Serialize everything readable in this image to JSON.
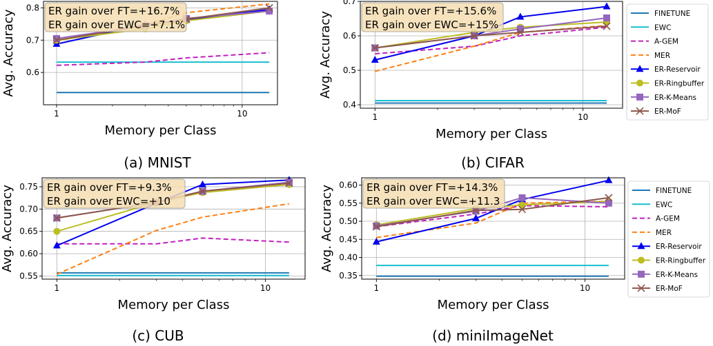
{
  "chart_data": [
    {
      "type": "line",
      "caption": "(a) MNIST",
      "xlabel": "Memory per Class",
      "ylabel": "Avg. Accuracy",
      "x_scale": "log",
      "xlim": [
        0.85,
        15.5
      ],
      "ylim": [
        0.5,
        0.82
      ],
      "x_ticks": [
        1,
        10
      ],
      "x_tick_labels": [
        "1",
        "10"
      ],
      "y_ticks": [
        0.6,
        0.7,
        0.8
      ],
      "y_tick_labels": [
        "0.6",
        "0.7",
        "0.8"
      ],
      "grid": true,
      "annotation": [
        "ER gain over FT=+16.7%",
        "ER gain over EWC=+7.1%"
      ],
      "legend": null,
      "series": [
        {
          "name": "FINETUNE",
          "x": [
            1,
            14
          ],
          "values": [
            0.538,
            0.538
          ]
        },
        {
          "name": "EWC",
          "x": [
            1,
            14
          ],
          "values": [
            0.632,
            0.632
          ]
        },
        {
          "name": "A-GEM",
          "x": [
            1,
            3,
            5,
            14
          ],
          "values": [
            0.622,
            0.632,
            0.645,
            0.661
          ]
        },
        {
          "name": "MER",
          "x": [
            1,
            3,
            5,
            14
          ],
          "values": [
            0.698,
            0.748,
            0.785,
            0.812
          ]
        },
        {
          "name": "ER-Reservoir",
          "x": [
            1,
            3,
            5,
            14
          ],
          "values": [
            0.688,
            0.748,
            0.762,
            0.795
          ]
        },
        {
          "name": "ER-Ringbuffer",
          "x": [
            1,
            3,
            5,
            14
          ],
          "values": [
            0.7,
            0.735,
            0.76,
            0.79
          ]
        },
        {
          "name": "ER-K-Means",
          "x": [
            1,
            3,
            5,
            14
          ],
          "values": [
            0.705,
            0.745,
            0.767,
            0.79
          ]
        },
        {
          "name": "ER-MoF",
          "x": [
            1,
            3,
            5,
            14
          ],
          "values": [
            0.7,
            0.745,
            0.765,
            0.8
          ]
        }
      ]
    },
    {
      "type": "line",
      "caption": "(b) CIFAR",
      "xlabel": "Memory per Class",
      "ylabel": "Avg. Accuracy",
      "x_scale": "log",
      "xlim": [
        0.85,
        15.5
      ],
      "ylim": [
        0.39,
        0.7
      ],
      "x_ticks": [
        1,
        10
      ],
      "x_tick_labels": [
        "1",
        "10"
      ],
      "y_ticks": [
        0.4,
        0.5,
        0.6,
        0.7
      ],
      "y_tick_labels": [
        "0.4",
        "0.5",
        "0.6",
        "0.7"
      ],
      "grid": true,
      "annotation": [
        "ER gain over FT=+15.6%",
        "ER gain over EWC=+15%"
      ],
      "legend": "right",
      "series": [
        {
          "name": "FINETUNE",
          "x": [
            1,
            13
          ],
          "values": [
            0.405,
            0.405
          ]
        },
        {
          "name": "EWC",
          "x": [
            1,
            13
          ],
          "values": [
            0.412,
            0.412
          ]
        },
        {
          "name": "A-GEM",
          "x": [
            1,
            3,
            5,
            13
          ],
          "values": [
            0.548,
            0.57,
            0.6,
            0.625
          ]
        },
        {
          "name": "MER",
          "x": [
            1,
            3,
            5,
            13
          ],
          "values": [
            0.497,
            0.57,
            0.61,
            0.63
          ]
        },
        {
          "name": "ER-Reservoir",
          "x": [
            1,
            3,
            5,
            13
          ],
          "values": [
            0.53,
            0.6,
            0.655,
            0.685
          ]
        },
        {
          "name": "ER-Ringbuffer",
          "x": [
            1,
            3,
            5,
            13
          ],
          "values": [
            0.565,
            0.61,
            0.625,
            0.64
          ]
        },
        {
          "name": "ER-K-Means",
          "x": [
            1,
            3,
            5,
            13
          ],
          "values": [
            0.565,
            0.6,
            0.62,
            0.652
          ]
        },
        {
          "name": "ER-MoF",
          "x": [
            1,
            3,
            5,
            13
          ],
          "values": [
            0.565,
            0.6,
            0.61,
            0.628
          ]
        }
      ]
    },
    {
      "type": "line",
      "caption": "(c) CUB",
      "xlabel": "Memory per Class",
      "ylabel": "Avg. Accuracy",
      "x_scale": "log",
      "xlim": [
        0.85,
        15.5
      ],
      "ylim": [
        0.543,
        0.77
      ],
      "x_ticks": [
        1,
        10
      ],
      "x_tick_labels": [
        "1",
        "10"
      ],
      "y_ticks": [
        0.55,
        0.6,
        0.65,
        0.7,
        0.75
      ],
      "y_tick_labels": [
        "0.55",
        "0.60",
        "0.65",
        "0.70",
        "0.75"
      ],
      "grid": true,
      "annotation": [
        "ER gain over FT=+9.3%",
        "ER gain over EWC=+10"
      ],
      "legend": null,
      "series": [
        {
          "name": "FINETUNE",
          "x": [
            1,
            13
          ],
          "values": [
            0.557,
            0.557
          ]
        },
        {
          "name": "EWC",
          "x": [
            1,
            13
          ],
          "values": [
            0.551,
            0.551
          ]
        },
        {
          "name": "A-GEM",
          "x": [
            1,
            3,
            5,
            13
          ],
          "values": [
            0.622,
            0.622,
            0.635,
            0.626
          ]
        },
        {
          "name": "MER",
          "x": [
            1,
            3,
            5,
            13
          ],
          "values": [
            0.554,
            0.652,
            0.682,
            0.712
          ]
        },
        {
          "name": "ER-Reservoir",
          "x": [
            1,
            3,
            5,
            13
          ],
          "values": [
            0.618,
            0.713,
            0.755,
            0.765
          ]
        },
        {
          "name": "ER-Ringbuffer",
          "x": [
            1,
            3,
            5,
            13
          ],
          "values": [
            0.65,
            0.715,
            0.737,
            0.755
          ]
        },
        {
          "name": "ER-K-Means",
          "x": [
            1,
            3,
            5,
            13
          ],
          "values": [
            0.68,
            0.715,
            0.74,
            0.76
          ]
        },
        {
          "name": "ER-MoF",
          "x": [
            1,
            3,
            5,
            13
          ],
          "values": [
            0.68,
            0.715,
            0.74,
            0.758
          ]
        }
      ]
    },
    {
      "type": "line",
      "caption": "(d) miniImageNet",
      "xlabel": "Memory per Class",
      "ylabel": "Avg. Accuracy",
      "x_scale": "log",
      "xlim": [
        0.85,
        15.5
      ],
      "ylim": [
        0.34,
        0.62
      ],
      "x_ticks": [
        1,
        10
      ],
      "x_tick_labels": [
        "1",
        "10"
      ],
      "y_ticks": [
        0.35,
        0.4,
        0.45,
        0.5,
        0.55,
        0.6
      ],
      "y_tick_labels": [
        "0.35",
        "0.40",
        "0.45",
        "0.50",
        "0.55",
        "0.60"
      ],
      "grid": true,
      "annotation": [
        "ER gain over FT=+14.3%",
        "ER gain over EWC=+11.3"
      ],
      "legend": "right",
      "series": [
        {
          "name": "FINETUNE",
          "x": [
            1,
            13
          ],
          "values": [
            0.348,
            0.348
          ]
        },
        {
          "name": "EWC",
          "x": [
            1,
            13
          ],
          "values": [
            0.378,
            0.378
          ]
        },
        {
          "name": "A-GEM",
          "x": [
            1,
            3,
            5,
            13
          ],
          "values": [
            0.485,
            0.52,
            0.543,
            0.54
          ]
        },
        {
          "name": "MER",
          "x": [
            1,
            3,
            5,
            13
          ],
          "values": [
            0.455,
            0.495,
            0.55,
            0.555
          ]
        },
        {
          "name": "ER-Reservoir",
          "x": [
            1,
            3,
            5,
            13
          ],
          "values": [
            0.443,
            0.508,
            0.56,
            0.613
          ]
        },
        {
          "name": "ER-Ringbuffer",
          "x": [
            1,
            3,
            5,
            13
          ],
          "values": [
            0.49,
            0.535,
            0.545,
            0.555
          ]
        },
        {
          "name": "ER-K-Means",
          "x": [
            1,
            3,
            5,
            13
          ],
          "values": [
            0.487,
            0.528,
            0.565,
            0.55
          ]
        },
        {
          "name": "ER-MoF",
          "x": [
            1,
            3,
            5,
            13
          ],
          "values": [
            0.485,
            0.53,
            0.533,
            0.565
          ]
        }
      ]
    }
  ],
  "series_styles": [
    {
      "name": "FINETUNE",
      "color": "#1f77b4",
      "dash": "solid",
      "marker": "none"
    },
    {
      "name": "EWC",
      "color": "#17becf",
      "dash": "solid",
      "marker": "none"
    },
    {
      "name": "A-GEM",
      "color": "#c020c0",
      "dash": "dashed",
      "marker": "none"
    },
    {
      "name": "MER",
      "color": "#ff7f0e",
      "dash": "dashed",
      "marker": "none"
    },
    {
      "name": "ER-Reservoir",
      "color": "#0000ee",
      "dash": "solid",
      "marker": "triangle"
    },
    {
      "name": "ER-Ringbuffer",
      "color": "#bcbd22",
      "dash": "solid",
      "marker": "circle"
    },
    {
      "name": "ER-K-Means",
      "color": "#9467bd",
      "dash": "solid",
      "marker": "square"
    },
    {
      "name": "ER-MoF",
      "color": "#8c564b",
      "dash": "solid",
      "marker": "x"
    }
  ]
}
